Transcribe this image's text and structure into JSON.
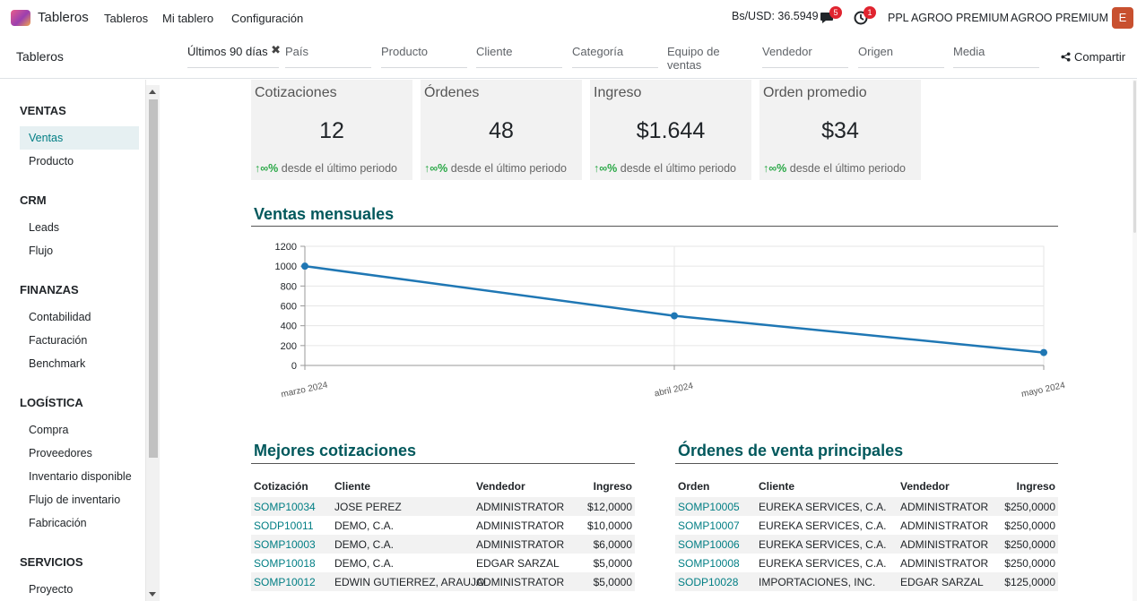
{
  "topbar": {
    "app_name": "Tableros",
    "menu": [
      "Tableros",
      "Mi tablero",
      "Configuración"
    ],
    "rate": "Bs/USD: 36.5949",
    "messages_badge": "5",
    "activity_badge": "1",
    "company_1": "PPL AGROO PREMIUM",
    "company_2": "AGROO PREMIUM",
    "avatar_letter": "E"
  },
  "control": {
    "breadcrumb": "Tableros",
    "period_filter": "Últimos 90 días",
    "filters": [
      "País",
      "Producto",
      "Cliente",
      "Categoría",
      "Equipo de ventas",
      "Vendedor",
      "Origen",
      "Media"
    ],
    "share_label": "Compartir"
  },
  "sidebar": {
    "sections": [
      {
        "title": "VENTAS",
        "items": [
          "Ventas",
          "Producto"
        ]
      },
      {
        "title": "CRM",
        "items": [
          "Leads",
          "Flujo"
        ]
      },
      {
        "title": "FINANZAS",
        "items": [
          "Contabilidad",
          "Facturación",
          "Benchmark"
        ]
      },
      {
        "title": "LOGÍSTICA",
        "items": [
          "Compra",
          "Proveedores",
          "Inventario disponible",
          "Flujo de inventario",
          "Fabricación"
        ]
      },
      {
        "title": "SERVICIOS",
        "items": [
          "Proyecto"
        ]
      }
    ],
    "active_item": "Ventas"
  },
  "kpis": [
    {
      "title": "Cotizaciones",
      "value": "12",
      "trend_symbol": "∞%",
      "trend_text": "desde el último periodo"
    },
    {
      "title": "Órdenes",
      "value": "48",
      "trend_symbol": "∞%",
      "trend_text": "desde el último periodo"
    },
    {
      "title": "Ingreso",
      "value": "$1.644",
      "trend_symbol": "∞%",
      "trend_text": "desde el último periodo"
    },
    {
      "title": "Orden promedio",
      "value": "$34",
      "trend_symbol": "∞%",
      "trend_text": "desde el último periodo"
    }
  ],
  "monthly": {
    "title": "Ventas mensuales"
  },
  "chart_data": {
    "type": "line",
    "title": "Ventas mensuales",
    "categories": [
      "marzo 2024",
      "abril 2024",
      "mayo 2024"
    ],
    "series": [
      {
        "values": [
          1000,
          500,
          130
        ]
      }
    ],
    "y_ticks": [
      0,
      200,
      400,
      600,
      800,
      1000,
      1200
    ],
    "ylim": [
      0,
      1200
    ],
    "grid": true,
    "color": "#1f77b4"
  },
  "quotes": {
    "title": "Mejores cotizaciones",
    "headers": [
      "Cotización",
      "Cliente",
      "Vendedor",
      "Ingreso"
    ],
    "rows": [
      [
        "SOMP10034",
        "JOSE PEREZ",
        "ADMINISTRATOR",
        "$12,0000"
      ],
      [
        "SODP10011",
        "DEMO, C.A.",
        "ADMINISTRATOR",
        "$10,0000"
      ],
      [
        "SOMP10003",
        "DEMO, C.A.",
        "ADMINISTRATOR",
        "$6,0000"
      ],
      [
        "SOMP10018",
        "DEMO, C.A.",
        "EDGAR SARZAL",
        "$5,0000"
      ],
      [
        "SOMP10012",
        "EDWIN GUTIERREZ, ARAUJO",
        "ADMINISTRATOR",
        "$5,0000"
      ]
    ]
  },
  "orders": {
    "title": "Órdenes de venta principales",
    "headers": [
      "Orden",
      "Cliente",
      "Vendedor",
      "Ingreso"
    ],
    "rows": [
      [
        "SOMP10005",
        "EUREKA SERVICES, C.A.",
        "ADMINISTRATOR",
        "$250,0000"
      ],
      [
        "SOMP10007",
        "EUREKA SERVICES, C.A.",
        "ADMINISTRATOR",
        "$250,0000"
      ],
      [
        "SOMP10006",
        "EUREKA SERVICES, C.A.",
        "ADMINISTRATOR",
        "$250,0000"
      ],
      [
        "SOMP10008",
        "EUREKA SERVICES, C.A.",
        "ADMINISTRATOR",
        "$250,0000"
      ],
      [
        "SODP10028",
        "IMPORTACIONES, INC.",
        "EDGAR SARZAL",
        "$125,0000"
      ]
    ]
  }
}
